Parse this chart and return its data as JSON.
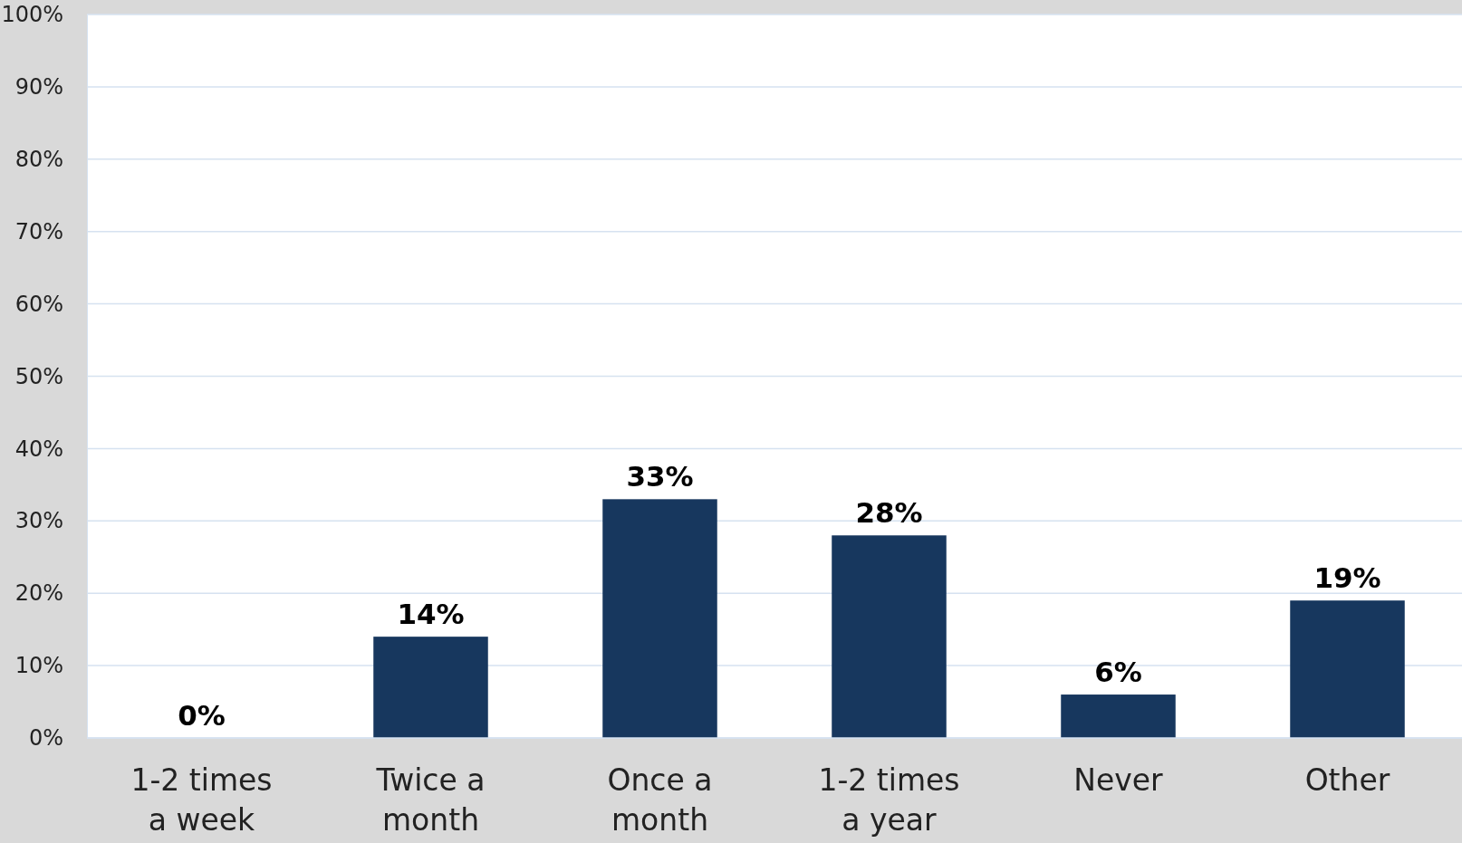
{
  "chart_data": {
    "type": "bar",
    "categories": [
      "1-2 times a week",
      "Twice a month",
      "Once a month",
      "1-2 times a year",
      "Never",
      "Other"
    ],
    "values": [
      0,
      14,
      33,
      28,
      6,
      19
    ],
    "color": "#17375e",
    "data_labels": true,
    "value_labels": [
      "0%",
      "14%",
      "33%",
      "28%",
      "6%",
      "19%"
    ],
    "ylim": [
      0,
      100
    ],
    "yticks": [
      {
        "value": 0,
        "label": "0%"
      },
      {
        "value": 10,
        "label": "10%"
      },
      {
        "value": 20,
        "label": "20%"
      },
      {
        "value": 30,
        "label": "30%"
      },
      {
        "value": 40,
        "label": "40%"
      },
      {
        "value": 50,
        "label": "50%"
      },
      {
        "value": 60,
        "label": "60%"
      },
      {
        "value": 70,
        "label": "70%"
      },
      {
        "value": 80,
        "label": "80%"
      },
      {
        "value": 90,
        "label": "90%"
      },
      {
        "value": 100,
        "label": "100%"
      }
    ],
    "grid": "y"
  }
}
